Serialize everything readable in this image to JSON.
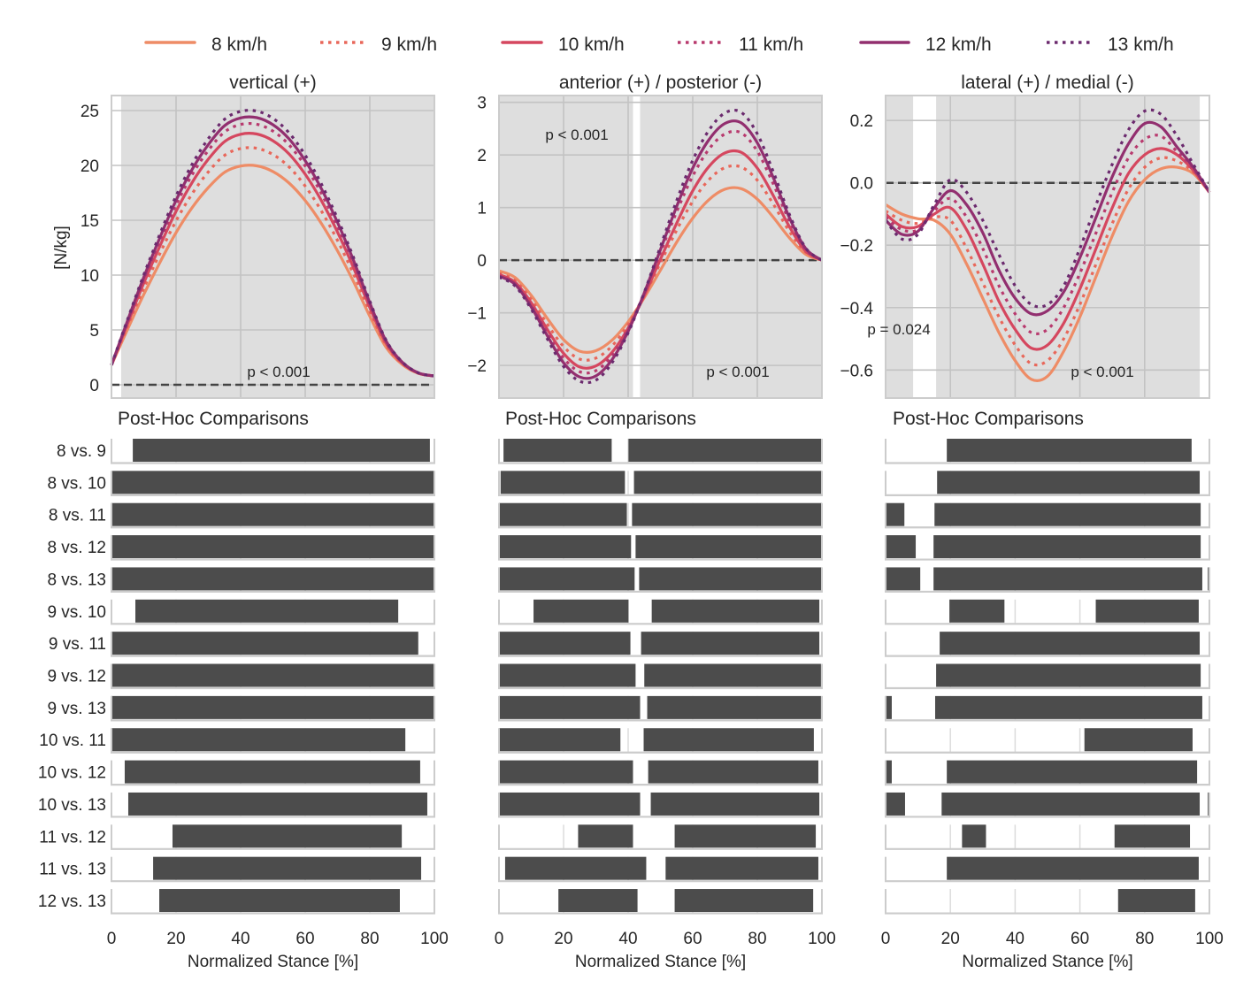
{
  "legend": {
    "items": [
      {
        "label": "8 km/h",
        "color": "#ee8c66",
        "style": "solid"
      },
      {
        "label": "9 km/h",
        "color": "#e8675a",
        "style": "dotted"
      },
      {
        "label": "10 km/h",
        "color": "#d5475f",
        "style": "solid"
      },
      {
        "label": "11 km/h",
        "color": "#b83a6e",
        "style": "dotted"
      },
      {
        "label": "12 km/h",
        "color": "#922f6f",
        "style": "solid"
      },
      {
        "label": "13 km/h",
        "color": "#6b2a6e",
        "style": "dotted"
      }
    ]
  },
  "colors": {
    "significance_shading": "#dedede",
    "posthoc_bar": "#4c4c4c",
    "zero_line": "#444444"
  },
  "chart_data": [
    {
      "type": "line",
      "title": "vertical (+)",
      "ylabel": "[N/kg]",
      "xlim": [
        0,
        100
      ],
      "ylim": [
        -1.21,
        26.37
      ],
      "yticks": [
        0,
        5,
        10,
        15,
        20,
        25
      ],
      "ytick_labels": [
        "0",
        "5",
        "10",
        "15",
        "20",
        "25"
      ],
      "grid": true,
      "zero_line": 0,
      "significant_ranges": [
        [
          3,
          100
        ]
      ],
      "annotations": [
        "p < 0.001"
      ],
      "x": [
        0,
        5,
        10,
        15,
        20,
        25,
        30,
        35,
        40,
        45,
        50,
        55,
        60,
        65,
        70,
        75,
        80,
        85,
        90,
        95,
        100
      ],
      "series": [
        {
          "name": "8 km/h",
          "values": [
            1.8,
            5.07,
            8.23,
            11.16,
            13.87,
            16.16,
            17.98,
            19.37,
            19.94,
            19.96,
            19.44,
            18.39,
            16.79,
            14.7,
            12.21,
            9.37,
            6.24,
            3.43,
            1.86,
            1.04,
            0.8
          ]
        },
        {
          "name": "9 km/h",
          "values": [
            1.8,
            5.36,
            8.8,
            11.98,
            14.94,
            17.43,
            19.41,
            20.91,
            21.54,
            21.56,
            20.99,
            19.85,
            18.11,
            15.85,
            13.15,
            10.07,
            6.69,
            3.63,
            1.94,
            1.06,
            0.8
          ]
        },
        {
          "name": "10 km/h",
          "values": [
            1.8,
            5.6,
            9.27,
            12.66,
            15.81,
            18.46,
            20.57,
            22.17,
            22.84,
            22.86,
            22.25,
            21.04,
            19.19,
            16.79,
            13.92,
            10.64,
            7.04,
            3.8,
            2.0,
            1.07,
            0.8
          ]
        },
        {
          "name": "11 km/h",
          "values": [
            1.8,
            5.76,
            9.59,
            13.12,
            16.41,
            19.17,
            21.37,
            23.04,
            23.73,
            23.75,
            23.13,
            21.86,
            19.94,
            17.44,
            14.45,
            11.04,
            7.29,
            3.92,
            2.05,
            1.08,
            0.8
          ]
        },
        {
          "name": "12 km/h",
          "values": [
            1.8,
            5.87,
            9.8,
            13.43,
            16.81,
            19.65,
            21.9,
            23.62,
            24.33,
            24.35,
            23.71,
            22.41,
            20.43,
            17.87,
            14.8,
            11.3,
            7.46,
            4.0,
            2.07,
            1.08,
            0.8
          ]
        },
        {
          "name": "13 km/h",
          "values": [
            1.8,
            5.98,
            10.02,
            13.75,
            17.21,
            20.12,
            22.44,
            24.2,
            24.93,
            24.95,
            24.29,
            22.96,
            20.93,
            18.3,
            15.15,
            11.56,
            7.62,
            4.08,
            2.1,
            1.09,
            0.8
          ]
        }
      ]
    },
    {
      "type": "line",
      "title": "anterior (+) / posterior (-)",
      "ylabel": "",
      "xlim": [
        0,
        100
      ],
      "ylim": [
        -2.62,
        3.13
      ],
      "yticks": [
        -2,
        -1,
        0,
        1,
        2,
        3
      ],
      "ytick_labels": [
        "−2",
        "−1",
        "0",
        "1",
        "2",
        "3"
      ],
      "grid": true,
      "zero_line": 0,
      "significant_ranges": [
        [
          0,
          41.5
        ],
        [
          43.7,
          100
        ]
      ],
      "annotations": [
        "p < 0.001",
        "p < 0.001"
      ],
      "x": [
        0,
        5,
        10,
        15,
        20,
        25,
        30,
        35,
        40,
        45,
        50,
        55,
        60,
        65,
        70,
        75,
        80,
        85,
        90,
        95,
        100
      ],
      "series": [
        {
          "name": "8 km/h",
          "values": [
            -0.2,
            -0.33,
            -0.67,
            -1.11,
            -1.51,
            -1.73,
            -1.72,
            -1.52,
            -1.17,
            -0.71,
            -0.19,
            0.34,
            0.8,
            1.15,
            1.35,
            1.36,
            1.16,
            0.81,
            0.42,
            0.11,
            0
          ]
        },
        {
          "name": "9 km/h",
          "values": [
            -0.25,
            -0.39,
            -0.75,
            -1.22,
            -1.64,
            -1.88,
            -1.86,
            -1.63,
            -1.22,
            -0.67,
            -0.05,
            0.57,
            1.12,
            1.53,
            1.76,
            1.77,
            1.52,
            1.06,
            0.54,
            0.15,
            0
          ]
        },
        {
          "name": "10 km/h",
          "values": [
            -0.27,
            -0.42,
            -0.81,
            -1.32,
            -1.77,
            -2.03,
            -2.01,
            -1.75,
            -1.29,
            -0.67,
            0.02,
            0.7,
            1.32,
            1.78,
            2.04,
            2.05,
            1.75,
            1.22,
            0.63,
            0.17,
            0
          ]
        },
        {
          "name": "11 km/h",
          "values": [
            -0.3,
            -0.45,
            -0.86,
            -1.39,
            -1.86,
            -2.12,
            -2.1,
            -1.81,
            -1.3,
            -0.62,
            0.15,
            0.92,
            1.6,
            2.11,
            2.4,
            2.42,
            2.07,
            1.44,
            0.74,
            0.2,
            0
          ]
        },
        {
          "name": "12 km/h",
          "values": [
            -0.3,
            -0.46,
            -0.89,
            -1.44,
            -1.95,
            -2.22,
            -2.2,
            -1.89,
            -1.35,
            -0.62,
            0.2,
            1.02,
            1.75,
            2.29,
            2.6,
            2.61,
            2.23,
            1.56,
            0.8,
            0.22,
            0
          ]
        },
        {
          "name": "13 km/h",
          "values": [
            -0.32,
            -0.49,
            -0.93,
            -1.5,
            -2.02,
            -2.3,
            -2.28,
            -1.95,
            -1.38,
            -0.61,
            0.26,
            1.13,
            1.9,
            2.47,
            2.8,
            2.81,
            2.4,
            1.67,
            0.86,
            0.23,
            0
          ]
        }
      ]
    },
    {
      "type": "line",
      "title": "lateral (+) / medial (-)",
      "ylabel": "",
      "xlim": [
        0,
        100
      ],
      "ylim": [
        -0.69,
        0.28
      ],
      "yticks": [
        -0.6,
        -0.4,
        -0.2,
        0.0,
        0.2
      ],
      "ytick_labels": [
        "−0.6",
        "−0.4",
        "−0.2",
        "0.0",
        "0.2"
      ],
      "grid": true,
      "zero_line": 0,
      "significant_ranges": [
        [
          0,
          8.5
        ],
        [
          15.6,
          97
        ]
      ],
      "annotations": [
        "p = 0.024",
        "p < 0.001"
      ],
      "x": [
        0,
        5,
        10,
        15,
        20,
        25,
        30,
        35,
        40,
        45,
        50,
        55,
        60,
        65,
        70,
        75,
        80,
        85,
        90,
        95,
        100
      ],
      "series": [
        {
          "name": "8 km/h",
          "values": [
            -0.07,
            -0.1,
            -0.115,
            -0.12,
            -0.165,
            -0.26,
            -0.37,
            -0.48,
            -0.57,
            -0.63,
            -0.62,
            -0.54,
            -0.43,
            -0.3,
            -0.17,
            -0.06,
            0.01,
            0.045,
            0.05,
            0.03,
            -0.03
          ]
        },
        {
          "name": "9 km/h",
          "values": [
            -0.09,
            -0.12,
            -0.13,
            -0.11,
            -0.12,
            -0.21,
            -0.32,
            -0.43,
            -0.52,
            -0.58,
            -0.57,
            -0.5,
            -0.39,
            -0.26,
            -0.13,
            -0.02,
            0.05,
            0.08,
            0.07,
            0.035,
            -0.03
          ]
        },
        {
          "name": "10 km/h",
          "values": [
            -0.1,
            -0.14,
            -0.14,
            -0.1,
            -0.08,
            -0.15,
            -0.26,
            -0.38,
            -0.47,
            -0.53,
            -0.52,
            -0.45,
            -0.34,
            -0.21,
            -0.08,
            0.03,
            0.09,
            0.11,
            0.09,
            0.04,
            -0.03
          ]
        },
        {
          "name": "11 km/h",
          "values": [
            -0.11,
            -0.15,
            -0.15,
            -0.09,
            -0.05,
            -0.11,
            -0.21,
            -0.33,
            -0.42,
            -0.48,
            -0.47,
            -0.4,
            -0.29,
            -0.16,
            -0.03,
            0.08,
            0.14,
            0.15,
            0.1,
            0.045,
            -0.03
          ]
        },
        {
          "name": "12 km/h",
          "values": [
            -0.12,
            -0.165,
            -0.155,
            -0.08,
            -0.025,
            -0.07,
            -0.16,
            -0.28,
            -0.37,
            -0.42,
            -0.41,
            -0.35,
            -0.24,
            -0.11,
            0.02,
            0.125,
            0.19,
            0.18,
            0.115,
            0.05,
            -0.03
          ]
        },
        {
          "name": "13 km/h",
          "values": [
            -0.12,
            -0.18,
            -0.165,
            -0.07,
            0.01,
            -0.03,
            -0.12,
            -0.23,
            -0.33,
            -0.39,
            -0.39,
            -0.33,
            -0.21,
            -0.07,
            0.06,
            0.17,
            0.23,
            0.22,
            0.15,
            0.06,
            -0.03
          ]
        }
      ]
    }
  ],
  "posthoc": {
    "title": "Post-Hoc Comparisons",
    "comparisons": [
      "8 vs. 9",
      "8 vs. 10",
      "8 vs. 11",
      "8 vs. 12",
      "8 vs. 13",
      "9 vs. 10",
      "9 vs. 11",
      "9 vs. 12",
      "9 vs. 13",
      "10 vs. 11",
      "10 vs. 12",
      "10 vs. 13",
      "11 vs. 12",
      "11 vs. 13",
      "12 vs. 13"
    ],
    "xticks": [
      "0",
      "20",
      "40",
      "60",
      "80",
      "100"
    ],
    "xlabel": "Normalized Stance [%]",
    "panels": [
      {
        "intervals": [
          [
            [
              6.6,
              98.6
            ]
          ],
          [
            [
              0,
              100
            ]
          ],
          [
            [
              0,
              100
            ]
          ],
          [
            [
              0,
              100
            ]
          ],
          [
            [
              0,
              100
            ]
          ],
          [
            [
              7.4,
              88.8
            ]
          ],
          [
            [
              0,
              95
            ]
          ],
          [
            [
              0,
              100
            ]
          ],
          [
            [
              0,
              100
            ]
          ],
          [
            [
              0,
              91
            ]
          ],
          [
            [
              4.1,
              95.6
            ]
          ],
          [
            [
              5.2,
              97.8
            ]
          ],
          [
            [
              18.9,
              89.9
            ]
          ],
          [
            [
              12.9,
              95.9
            ]
          ],
          [
            [
              14.8,
              89.3
            ]
          ]
        ]
      },
      {
        "intervals": [
          [
            [
              1.4,
              34.9
            ],
            [
              40.1,
              100
            ]
          ],
          [
            [
              0.5,
              39
            ],
            [
              41.8,
              100
            ]
          ],
          [
            [
              0,
              39.6
            ],
            [
              41.2,
              100
            ]
          ],
          [
            [
              0,
              40.9
            ],
            [
              42.3,
              100
            ]
          ],
          [
            [
              0,
              42
            ],
            [
              43.4,
              100
            ]
          ],
          [
            [
              10.7,
              40.1
            ],
            [
              47.3,
              99.2
            ]
          ],
          [
            [
              0,
              40.7
            ],
            [
              44,
              99.2
            ]
          ],
          [
            [
              0,
              42.3
            ],
            [
              45,
              99.7
            ]
          ],
          [
            [
              0,
              43.7
            ],
            [
              45.9,
              99.7
            ]
          ],
          [
            [
              0,
              37.6
            ],
            [
              44.8,
              97.5
            ]
          ],
          [
            [
              0,
              41.5
            ],
            [
              46.2,
              98.9
            ]
          ],
          [
            [
              0,
              43.7
            ],
            [
              47,
              99.2
            ]
          ],
          [
            [
              24.5,
              41.5
            ],
            [
              54.4,
              98.1
            ]
          ],
          [
            [
              1.9,
              45.6
            ],
            [
              51.6,
              98.9
            ]
          ],
          [
            [
              18.4,
              42.9
            ],
            [
              54.4,
              97.3
            ]
          ]
        ]
      },
      {
        "intervals": [
          [
            [
              18.9,
              94.5
            ]
          ],
          [
            [
              15.9,
              97
            ]
          ],
          [
            [
              0,
              5.8
            ],
            [
              15.1,
              97.3
            ]
          ],
          [
            [
              0,
              9.3
            ],
            [
              14.8,
              97.3
            ]
          ],
          [
            [
              0,
              10.7
            ],
            [
              14.8,
              97.8
            ],
            [
              99.5,
              100
            ]
          ],
          [
            [
              19.7,
              36.7
            ],
            [
              64.9,
              96.7
            ]
          ],
          [
            [
              16.7,
              97
            ]
          ],
          [
            [
              15.6,
              97.3
            ]
          ],
          [
            [
              0,
              1.9
            ],
            [
              15.3,
              97.8
            ]
          ],
          [
            [
              61.4,
              94.8
            ]
          ],
          [
            [
              0,
              1.9
            ],
            [
              18.9,
              96.2
            ]
          ],
          [
            [
              0,
              6
            ],
            [
              17.3,
              97
            ],
            [
              99.5,
              100
            ]
          ],
          [
            [
              23.6,
              31
            ],
            [
              70.7,
              94
            ]
          ],
          [
            [
              18.9,
              96.7
            ]
          ],
          [
            [
              71.8,
              95.6
            ]
          ]
        ]
      }
    ]
  }
}
